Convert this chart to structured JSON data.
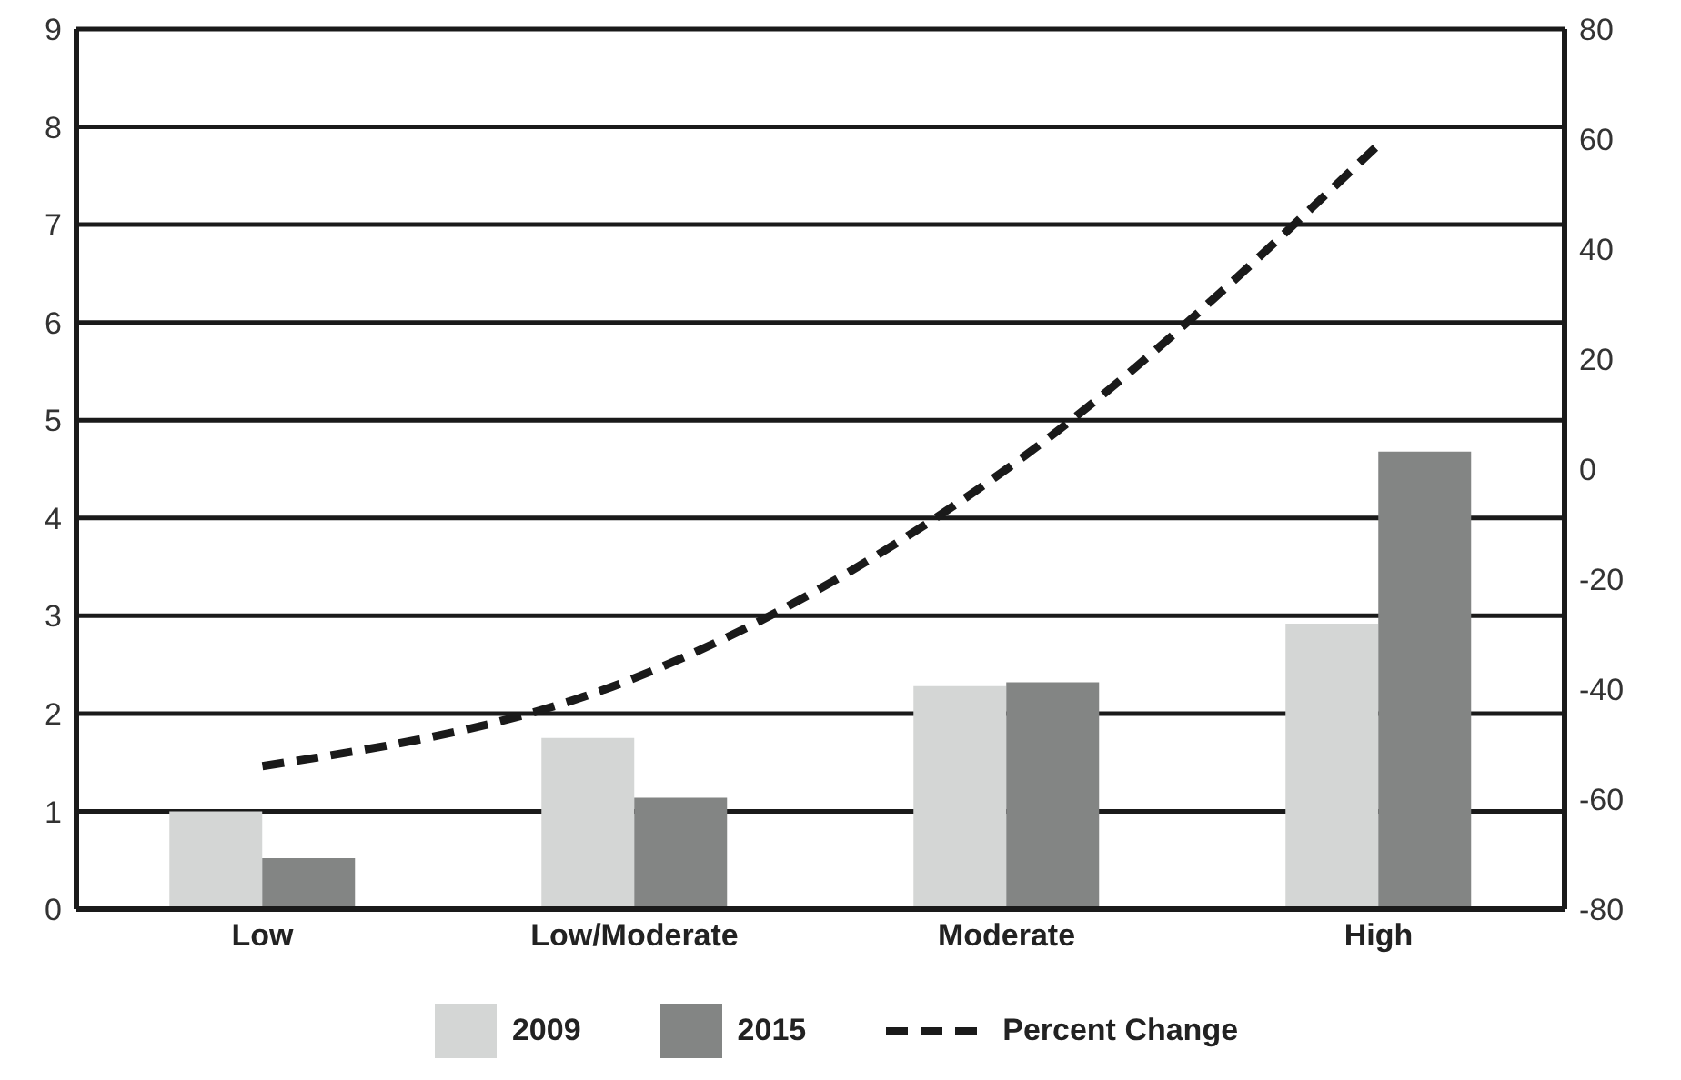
{
  "chart_data": {
    "type": "bar",
    "categories": [
      "Low",
      "Low/Moderate",
      "Moderate",
      "High"
    ],
    "series": [
      {
        "name": "2009",
        "color": "#d4d6d5",
        "values": [
          1.0,
          1.75,
          2.28,
          2.92
        ]
      },
      {
        "name": "2015",
        "color": "#838584",
        "values": [
          0.52,
          1.14,
          2.32,
          4.68
        ]
      },
      {
        "name": "Percent Change",
        "type": "line",
        "axis": "y2",
        "color": "#1a1a1a",
        "line_style": "dashed",
        "marker": "none",
        "values": [
          -54,
          -38,
          0,
          59
        ]
      }
    ],
    "ylim": [
      0,
      9
    ],
    "yticks": [
      0,
      1,
      2,
      3,
      4,
      5,
      6,
      7,
      8,
      9
    ],
    "y2lim": [
      -80,
      80
    ],
    "y2ticks": [
      -80,
      -60,
      -40,
      -20,
      0,
      20,
      40,
      60,
      80
    ],
    "grid": "y",
    "legend": "bottom"
  }
}
